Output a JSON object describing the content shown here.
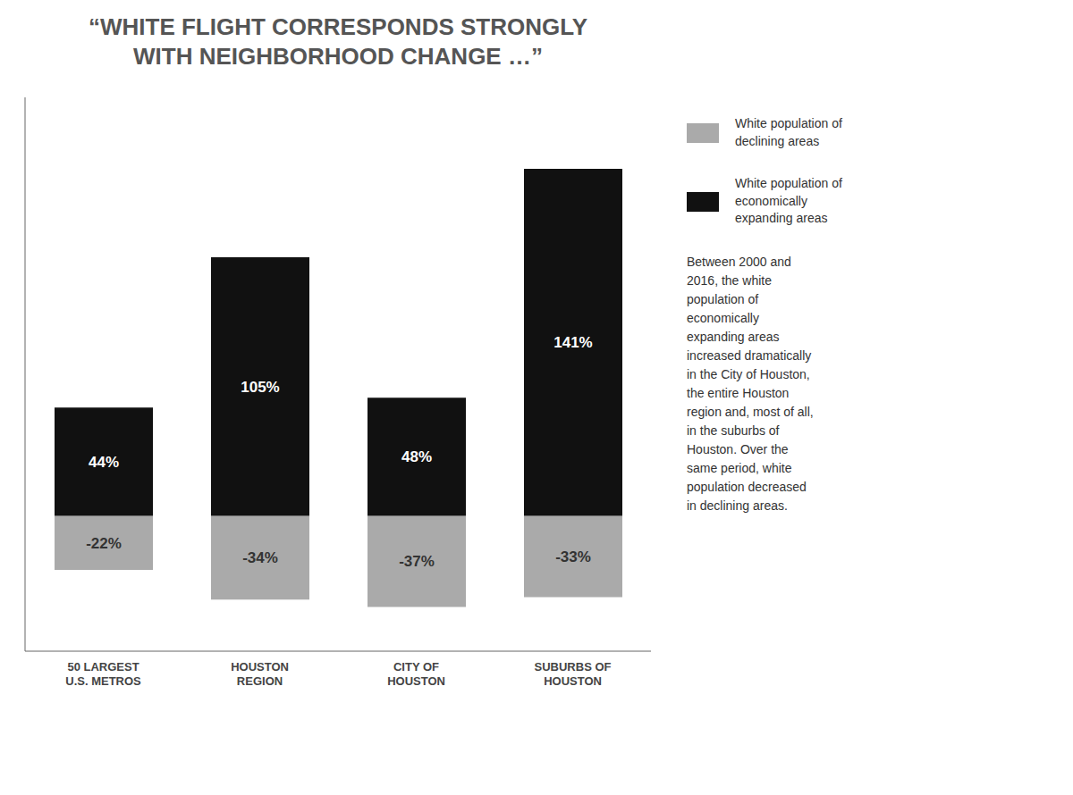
{
  "chart_data": {
    "type": "bar",
    "title": "“WHITE FLIGHT CORRESPONDS STRONGLY\nWITH NEIGHBORHOOD CHANGE …”",
    "categories": [
      "50 LARGEST\nU.S. METROS",
      "HOUSTON\nREGION",
      "CITY OF\nHOUSTON",
      "SUBURBS OF\nHOUSTON"
    ],
    "series": [
      {
        "name": "White population of\ndeclining areas",
        "color": "#aaaaaa",
        "values": [
          -22,
          -34,
          -37,
          -33
        ],
        "value_labels": [
          "-22%",
          "-34%",
          "-37%",
          "-33%"
        ]
      },
      {
        "name": "White population of\neconomically\nexpanding areas",
        "color": "#111111",
        "values": [
          44,
          105,
          48,
          141
        ],
        "value_labels": [
          "44%",
          "105%",
          "48%",
          "141%"
        ]
      }
    ],
    "ylim": [
      -55,
      170
    ],
    "tick_labels": "x",
    "data_labels": true,
    "stacked": true,
    "legend": "right",
    "grid": false,
    "annotation": "Between 2000 and\n2016, the white\npopulation of\neconomically\nexpanding areas\nincreased dramatically\nin the City of Houston,\nthe entire Houston\nregion and, most of all,\nin the suburbs of\nHouston. Over the\nsame period, white\npopulation decreased\nin declining areas."
  }
}
